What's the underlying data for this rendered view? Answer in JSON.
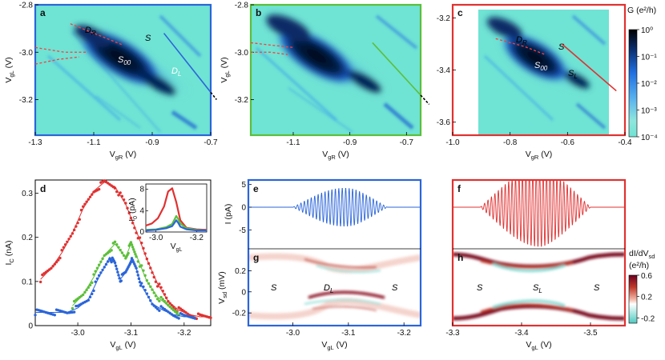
{
  "figure": {
    "panel_labels": [
      "a",
      "b",
      "c",
      "d",
      "e",
      "f",
      "g",
      "h"
    ],
    "annotations": {
      "a": [
        "D",
        "R",
        "S",
        "S",
        "00",
        "D",
        "L"
      ],
      "b": [],
      "c": [
        "D",
        "R",
        "S",
        "S",
        "00",
        "S",
        "L"
      ],
      "g": [
        "S",
        "D",
        "L",
        "S"
      ],
      "h": [
        "S",
        "S",
        "L",
        "S"
      ]
    },
    "colors": {
      "blue": "#2b65d9",
      "green": "#5cbf3a",
      "red": "#e03131",
      "black": "#000000",
      "cyan_bg": "#6fe3d4",
      "dash_red": "#ff3b3b"
    }
  },
  "chart_data": [
    {
      "id": "a",
      "type": "heatmap",
      "xlabel": "V",
      "xlabel_sub": "gR",
      "xlabel_unit": " (V)",
      "ylabel": "V",
      "ylabel_sub": "gL",
      "ylabel_unit": " (V)",
      "xlim": [
        -1.3,
        -0.7
      ],
      "ylim": [
        -3.35,
        -2.8
      ],
      "xticks": [
        "-1.3",
        "-1.1",
        "-0.9",
        "-0.7"
      ],
      "xtick_values": [
        -1.3,
        -1.1,
        -0.9,
        -0.7
      ],
      "yticks": [
        "-2.8",
        "-3.0",
        "-3.2"
      ],
      "ytick_values": [
        -2.8,
        -3.0,
        -3.2
      ],
      "linecut_color": "#2b65d9",
      "linecut": [
        [
          -0.86,
          -2.92
        ],
        [
          -0.68,
          -3.2
        ]
      ],
      "dashed_boundaries": [
        [
          [
            -1.18,
            -2.88
          ],
          [
            -1.08,
            -2.93
          ],
          [
            -1.0,
            -2.97
          ]
        ],
        [
          [
            -1.3,
            -2.98
          ],
          [
            -1.2,
            -3.0
          ],
          [
            -1.12,
            -3.0
          ]
        ],
        [
          [
            -1.3,
            -3.05
          ],
          [
            -1.22,
            -3.03
          ],
          [
            -1.15,
            -3.02
          ]
        ]
      ],
      "frame_color": "#2b65d9"
    },
    {
      "id": "b",
      "type": "heatmap",
      "xlabel": "V",
      "xlabel_sub": "gR",
      "xlabel_unit": " (V)",
      "ylabel": "V",
      "ylabel_sub": "gL",
      "ylabel_unit": " (V)",
      "xlim": [
        -1.25,
        -0.65
      ],
      "ylim": [
        -3.35,
        -2.8
      ],
      "xticks": [
        "-1.1",
        "-0.9",
        "-0.7"
      ],
      "xtick_values": [
        -1.1,
        -0.9,
        -0.7
      ],
      "yticks": [
        "-2.8",
        "-3.0",
        "-3.2"
      ],
      "ytick_values": [
        -2.8,
        -3.0,
        -3.2
      ],
      "linecut_color": "#5cbf3a",
      "linecut": [
        [
          -0.82,
          -2.96
        ],
        [
          -0.62,
          -3.22
        ]
      ],
      "dashed_boundaries": [
        [
          [
            -1.25,
            -2.96
          ],
          [
            -1.18,
            -2.97
          ],
          [
            -1.1,
            -2.98
          ]
        ],
        [
          [
            -1.25,
            -3.0
          ],
          [
            -1.18,
            -3.0
          ],
          [
            -1.12,
            -3.01
          ]
        ]
      ],
      "frame_color": "#5cbf3a"
    },
    {
      "id": "c",
      "type": "heatmap",
      "xlabel": "V",
      "xlabel_sub": "gR",
      "xlabel_unit": " (V)",
      "ylabel": "",
      "ylabel_sub": "",
      "ylabel_unit": "",
      "xlim": [
        -1.0,
        -0.4
      ],
      "ylim": [
        -3.65,
        -3.15
      ],
      "xticks": [
        "-1.0",
        "-0.8",
        "-0.6",
        "-0.4"
      ],
      "xtick_values": [
        -1.0,
        -0.8,
        -0.6,
        -0.4
      ],
      "yticks": [
        "-3.2",
        "-3.4",
        "-3.6"
      ],
      "ytick_values": [
        -3.2,
        -3.4,
        -3.6
      ],
      "data_xrange": [
        -0.89,
        -0.44
      ],
      "linecut_color": "#e03131",
      "linecut": [
        [
          -0.62,
          -3.3
        ],
        [
          -0.43,
          -3.48
        ]
      ],
      "dashed_boundaries": [
        [
          [
            -0.85,
            -3.28
          ],
          [
            -0.75,
            -3.31
          ],
          [
            -0.68,
            -3.34
          ]
        ]
      ],
      "frame_color": "#e03131",
      "colorbar": {
        "label": "G (e²/h)",
        "scale": "log",
        "ticks": [
          "10⁰",
          "10⁻¹",
          "10⁻²",
          "10⁻³",
          "10⁻⁴"
        ],
        "tick_values": [
          0,
          -1,
          -2,
          -3,
          -4
        ],
        "range": [
          -4,
          0
        ]
      }
    },
    {
      "id": "d",
      "type": "scatter",
      "xlabel": "V",
      "xlabel_sub": "gL",
      "xlabel_unit": " (V)",
      "ylabel": "I",
      "ylabel_sub": "C",
      "ylabel_unit": " (nA)",
      "xlim": [
        -2.92,
        -3.25
      ],
      "ylim": [
        0,
        0.33
      ],
      "xticks": [
        "-3.0",
        "-3.1",
        "-3.2"
      ],
      "xtick_values": [
        -3.0,
        -3.1,
        -3.2
      ],
      "yticks": [
        "0",
        "0.1",
        "0.2",
        "0.3"
      ],
      "ytick_values": [
        0,
        0.1,
        0.2,
        0.3
      ],
      "series": [
        {
          "name": "red",
          "color": "#e03131",
          "x": [
            -2.93,
            -2.95,
            -2.97,
            -2.99,
            -3.01,
            -3.03,
            -3.05,
            -3.07,
            -3.09,
            -3.11,
            -3.13,
            -3.15,
            -3.17,
            -3.19,
            -3.21,
            -3.23,
            -3.25
          ],
          "y": [
            0.105,
            0.13,
            0.165,
            0.21,
            0.265,
            0.305,
            0.325,
            0.315,
            0.275,
            0.215,
            0.15,
            0.095,
            0.055,
            0.035,
            0.025,
            0.02,
            0.02
          ]
        },
        {
          "name": "green",
          "color": "#5cbf3a",
          "x": [
            -2.99,
            -3.01,
            -3.03,
            -3.05,
            -3.07,
            -3.09,
            -3.1,
            -3.11,
            -3.13,
            -3.15,
            -3.17,
            -3.19
          ],
          "y": [
            0.045,
            0.07,
            0.11,
            0.16,
            0.185,
            0.155,
            0.185,
            0.16,
            0.1,
            0.065,
            0.045,
            0.03
          ]
        },
        {
          "name": "blue",
          "color": "#2b65d9",
          "x": [
            -2.92,
            -2.94,
            -2.96,
            -2.98,
            -3.0,
            -3.02,
            -3.04,
            -3.06,
            -3.07,
            -3.08,
            -3.09,
            -3.1,
            -3.11,
            -3.12,
            -3.14,
            -3.16,
            -3.18,
            -3.2,
            -3.22
          ],
          "y": [
            0.03,
            0.03,
            0.03,
            0.03,
            0.04,
            0.06,
            0.11,
            0.155,
            0.14,
            0.105,
            0.12,
            0.15,
            0.13,
            0.09,
            0.05,
            0.035,
            0.025,
            0.02,
            0.02
          ]
        }
      ],
      "inset": {
        "xlabel": "V",
        "xlabel_sub": "gL",
        "ylabel": "I",
        "ylabel_sub": "0",
        "ylabel_unit": " (pA)",
        "xlim": [
          -2.95,
          -3.25
        ],
        "ylim": [
          0,
          9
        ],
        "xticks": [
          "-3.0",
          "-3.2"
        ],
        "xtick_values": [
          -3.0,
          -3.2
        ],
        "yticks": [
          "0",
          "4",
          "8"
        ],
        "ytick_values": [
          0,
          4,
          8
        ],
        "series": [
          {
            "name": "red",
            "color": "#e03131",
            "x": [
              -2.95,
              -2.98,
              -3.01,
              -3.04,
              -3.06,
              -3.08,
              -3.1,
              -3.12,
              -3.15,
              -3.2,
              -3.25
            ],
            "y": [
              1.2,
              1.6,
              2.6,
              4.8,
              7.6,
              8.2,
              5.6,
              2.2,
              0.8,
              0.5,
              0.4
            ]
          },
          {
            "name": "green",
            "color": "#5cbf3a",
            "x": [
              -2.95,
              -3.0,
              -3.05,
              -3.08,
              -3.1,
              -3.11,
              -3.12,
              -3.15,
              -3.2,
              -3.25
            ],
            "y": [
              0.4,
              0.5,
              0.9,
              1.5,
              3.0,
              2.4,
              1.6,
              0.7,
              0.4,
              0.3
            ]
          },
          {
            "name": "blue",
            "color": "#2b65d9",
            "x": [
              -2.95,
              -3.0,
              -3.05,
              -3.08,
              -3.1,
              -3.11,
              -3.12,
              -3.15,
              -3.2,
              -3.25
            ],
            "y": [
              0.3,
              0.4,
              0.7,
              1.1,
              2.2,
              1.7,
              1.0,
              0.5,
              0.3,
              0.3
            ]
          }
        ]
      }
    },
    {
      "id": "e",
      "type": "line",
      "xlabel": "",
      "ylabel": "I (pA)",
      "xlim": [
        -2.92,
        -3.23
      ],
      "ylim": [
        -9,
        6
      ],
      "yticks": [
        "5",
        "0",
        "-5"
      ],
      "ytick_values": [
        5,
        0,
        -5
      ],
      "series": [
        {
          "name": "oscillating current",
          "color": "#2b65d9",
          "x_range": [
            -3.0,
            -3.17
          ],
          "peak_x": -3.11,
          "max_amp": 4.5
        }
      ],
      "frame_color": "#2b65d9"
    },
    {
      "id": "f",
      "type": "line",
      "xlabel": "",
      "ylabel": "",
      "xlim": [
        -3.3,
        -3.55
      ],
      "ylim": [
        -9,
        6
      ],
      "yticks": [],
      "ytick_values": [],
      "series": [
        {
          "name": "oscillating current",
          "color": "#e03131",
          "x_range": [
            -3.34,
            -3.5
          ],
          "peak_x": -3.43,
          "max_amp": 9
        }
      ],
      "frame_color": "#e03131"
    },
    {
      "id": "g",
      "type": "heatmap",
      "xlabel": "V",
      "xlabel_sub": "gL",
      "xlabel_unit": " (V)",
      "ylabel": "V",
      "ylabel_sub": "sd",
      "ylabel_unit": " (mV)",
      "xlim": [
        -2.92,
        -3.23
      ],
      "ylim": [
        -0.32,
        0.4
      ],
      "xticks": [
        "-3.0",
        "-3.1",
        "-3.2"
      ],
      "xtick_values": [
        -3.0,
        -3.1,
        -3.2
      ],
      "yticks": [
        "0.2",
        "0",
        "-0.2"
      ],
      "ytick_values": [
        0.2,
        0,
        -0.2
      ],
      "frame_color": "#2b65d9"
    },
    {
      "id": "h",
      "type": "heatmap",
      "xlabel": "V",
      "xlabel_sub": "gL",
      "xlabel_unit": " (V)",
      "ylabel": "",
      "ylabel_sub": "",
      "ylabel_unit": "",
      "xlim": [
        -3.3,
        -3.55
      ],
      "ylim": [
        -0.32,
        0.4
      ],
      "xticks": [
        "-3.3",
        "-3.4",
        "-3.5"
      ],
      "xtick_values": [
        -3.3,
        -3.4,
        -3.5
      ],
      "yticks": [],
      "ytick_values": [],
      "frame_color": "#e03131",
      "colorbar": {
        "label_line1": "dI/dV",
        "label_line1_sub": "sd",
        "label_line2": "(e²/h)",
        "scale": "linear",
        "ticks": [
          "0.6",
          "0.2",
          "-0.2"
        ],
        "tick_values": [
          0.6,
          0.2,
          -0.2
        ],
        "range": [
          -0.3,
          0.6
        ]
      }
    }
  ]
}
